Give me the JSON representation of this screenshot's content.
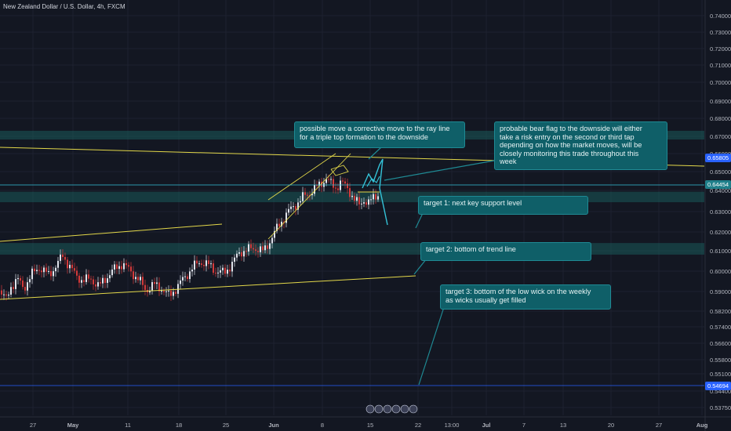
{
  "title": "New Zealand Dollar / U.S. Dollar, 4h, FXCM",
  "colors": {
    "background": "#131722",
    "grid": "#1e2230",
    "up": "#e0e3eb",
    "down": "#d43a3a",
    "zone": "#1a5a5a",
    "trendline": "#e3d84a",
    "projection": "#34c3d8",
    "callout": "#0f5f68",
    "price_tag": "#2962ff"
  },
  "chart_data": {
    "type": "candlestick",
    "ylim": [
      0.5335,
      0.7475
    ],
    "price_ticks": [
      "0.74000",
      "0.73000",
      "0.72000",
      "0.71000",
      "0.70000",
      "0.69000",
      "0.68000",
      "0.67000",
      "0.66000",
      "0.65000",
      "0.64000",
      "0.63000",
      "0.62000",
      "0.61000",
      "0.60000",
      "0.59000",
      "0.58200",
      "0.57400",
      "0.56600",
      "0.55800",
      "0.55100",
      "0.54400",
      "0.53750"
    ],
    "price_tag_upper": "0.65805",
    "price_tag_mid": "0.64454",
    "price_tag_lower": "0.54694",
    "date_ticks": [
      "27",
      "May",
      "11",
      "18",
      "25",
      "Jun",
      "8",
      "15",
      "22",
      "13:00",
      "Jul",
      "7",
      "13",
      "20",
      "27",
      "Aug"
    ],
    "date_ticks_bold": [
      "May",
      "Jun",
      "Jul",
      "Aug"
    ],
    "zones": [
      {
        "low": 0.676,
        "high": 0.6805
      },
      {
        "low": 0.6436,
        "high": 0.649
      },
      {
        "low": 0.6165,
        "high": 0.6225
      }
    ],
    "annotations": {
      "callout_1": "possible move a corrective move to the ray line\nfor a triple top formation to the downside",
      "callout_2": "probable bear flag to the downside will either\ntake a risk entry on the second or third tap\ndepending on how the market moves, will be\nclosely monitoring this trade throughout this\nweek",
      "callout_3": "target 1: next key support level",
      "callout_4": "target 2: bottom of trend line",
      "callout_5": "target 3: bottom of the low wick on the weekly\nas wicks usually get filled"
    }
  }
}
